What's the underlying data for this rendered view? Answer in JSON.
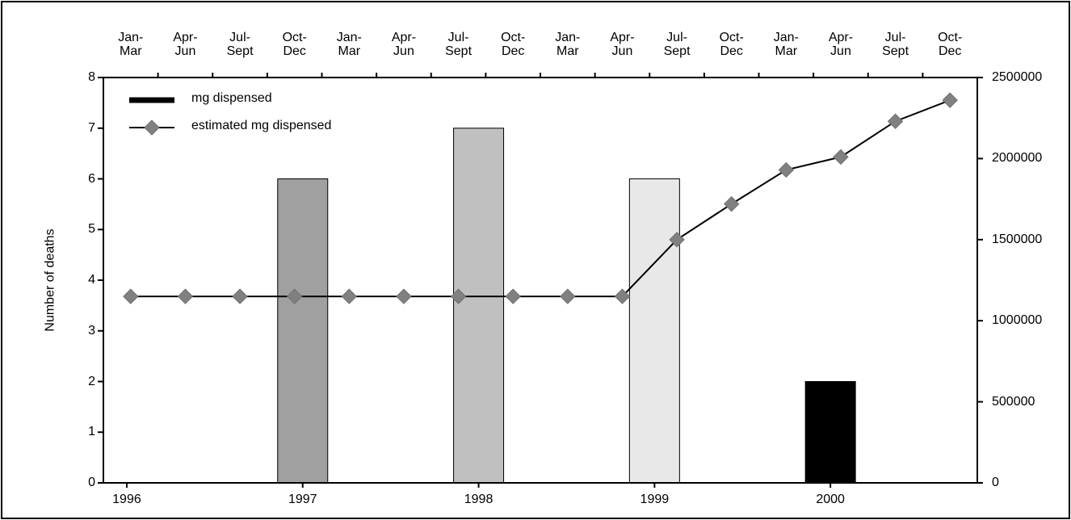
{
  "chart_data": {
    "type": "bar",
    "y_label": "Number of deaths",
    "categories": [
      "Jan-Mar",
      "Apr-Jun",
      "Jul-Sept",
      "Oct-Dec",
      "Jan-Mar",
      "Apr-Jun",
      "Jul-Sept",
      "Oct-Dec",
      "Jan-Mar",
      "Apr-Jun",
      "Jul-Sept",
      "Oct-Dec",
      "Jan-Mar",
      "Apr-Jun",
      "Jul-Sept",
      "Oct-Dec"
    ],
    "x": [
      1996,
      1997,
      1998,
      1999,
      2000
    ],
    "xlim": [
      1995.867,
      2000.835
    ],
    "xticks": [
      1996,
      1997,
      1998,
      1999,
      2000
    ],
    "values": [
      null,
      6,
      7,
      6,
      2
    ],
    "colors": [
      null,
      "#a0a0a0",
      "#c0c0c0",
      "#e8e8e8",
      "#000000"
    ],
    "ylim": [
      0,
      8
    ],
    "yticks": [
      0,
      1,
      2,
      3,
      4,
      5,
      6,
      7,
      8
    ],
    "y2lim": [
      0,
      2500000
    ],
    "y2ticks": [
      0,
      500000,
      1000000,
      1500000,
      2000000,
      2500000
    ],
    "series": [
      {
        "name": "mg dispensed",
        "color": "#000000",
        "axis": "y2",
        "values": [
          null,
          null,
          null,
          null,
          null,
          null,
          null,
          null,
          null,
          null,
          null,
          null,
          null,
          null,
          null,
          null
        ]
      },
      {
        "name": "estimated mg dispensed",
        "color": "#808080",
        "axis": "y2",
        "type": "line",
        "marker": "diamond",
        "values": [
          1150000,
          1150000,
          1150000,
          1150000,
          1150000,
          1150000,
          1150000,
          1150000,
          1150000,
          1150000,
          1500000,
          1720000,
          1930000,
          2010000,
          2230000,
          2360000
        ]
      }
    ],
    "legend": "upper-left"
  }
}
